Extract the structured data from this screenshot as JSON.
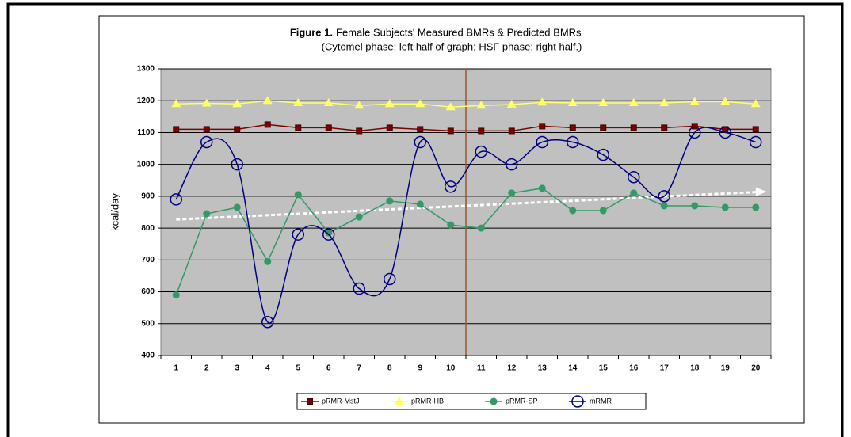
{
  "chart_data": {
    "type": "line",
    "title_label": "Figure 1.",
    "title": "Female Subjects' Measured BMRs & Predicted BMRs",
    "subtitle": "(Cytomel phase: left half of graph; HSF phase: right half.)",
    "y_label": "kcal/day",
    "categories": [
      "1",
      "2",
      "3",
      "4",
      "5",
      "6",
      "7",
      "8",
      "9",
      "10",
      "11",
      "12",
      "13",
      "14",
      "15",
      "16",
      "17",
      "18",
      "19",
      "20"
    ],
    "ylim": [
      400,
      1300
    ],
    "yticks": [
      400,
      500,
      600,
      700,
      800,
      900,
      1000,
      1100,
      1200,
      1300
    ],
    "grid": true,
    "series": [
      {
        "name": "pRMR-MstJ",
        "color": "#800000",
        "marker": "square",
        "values": [
          1110,
          1110,
          1110,
          1125,
          1115,
          1115,
          1105,
          1115,
          1110,
          1105,
          1105,
          1105,
          1120,
          1115,
          1115,
          1115,
          1115,
          1120,
          1110,
          1110
        ]
      },
      {
        "name": "pRMR-HB",
        "color": "#ffff66",
        "marker": "triangle",
        "values": [
          1190,
          1192,
          1190,
          1200,
          1193,
          1193,
          1185,
          1190,
          1190,
          1180,
          1185,
          1188,
          1195,
          1193,
          1193,
          1193,
          1193,
          1197,
          1197,
          1190
        ]
      },
      {
        "name": "pRMR-SP",
        "color": "#339966",
        "marker": "diamond",
        "values": [
          590,
          845,
          865,
          695,
          905,
          785,
          835,
          885,
          875,
          810,
          800,
          910,
          925,
          855,
          855,
          910,
          870,
          870,
          865,
          865
        ]
      },
      {
        "name": "mRMR",
        "color": "#000080",
        "marker": "circle",
        "smooth": true,
        "values": [
          890,
          1070,
          1000,
          505,
          780,
          780,
          610,
          640,
          1070,
          930,
          1040,
          1000,
          1070,
          1070,
          1030,
          960,
          900,
          1100,
          1100,
          1070
        ]
      }
    ],
    "trendline": {
      "color": "#ffffff",
      "values": [
        827,
        913
      ]
    }
  }
}
